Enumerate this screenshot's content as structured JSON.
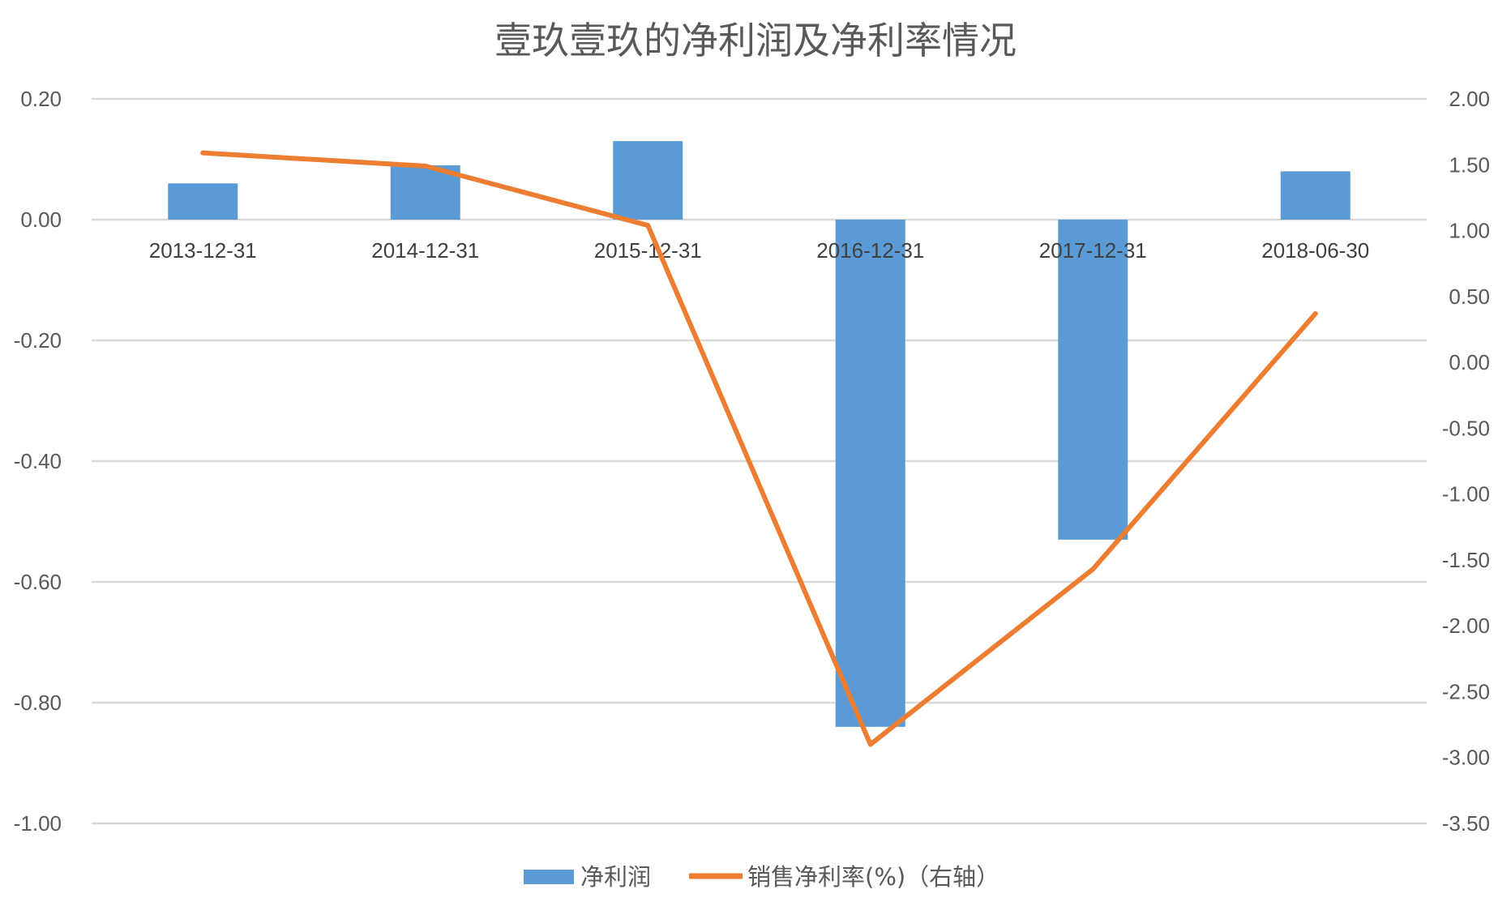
{
  "chart_data": {
    "type": "bar",
    "title": "壹玖壹玖的净利润及净利率情况",
    "categories": [
      "2013-12-31",
      "2014-12-31",
      "2015-12-31",
      "2016-12-31",
      "2017-12-31",
      "2018-06-30"
    ],
    "series": [
      {
        "name": "净利润",
        "type": "bar",
        "axis": "left",
        "values": [
          0.06,
          0.09,
          0.13,
          -0.84,
          -0.53,
          0.08
        ]
      },
      {
        "name": "销售净利率(%)（右轴）",
        "type": "line",
        "axis": "right",
        "values": [
          1.59,
          1.49,
          1.04,
          -2.9,
          -1.57,
          0.37
        ]
      }
    ],
    "left_axis": {
      "ylim": [
        -1.0,
        0.2
      ],
      "ticks": [
        "0.20",
        "0.00",
        "-0.20",
        "-0.40",
        "-0.60",
        "-0.80",
        "-1.00"
      ]
    },
    "right_axis": {
      "ylim": [
        -3.5,
        2.0
      ],
      "ticks": [
        "2.00",
        "1.50",
        "1.00",
        "0.50",
        "0.00",
        "-0.50",
        "-1.00",
        "-1.50",
        "-2.00",
        "-2.50",
        "-3.00",
        "-3.50"
      ]
    },
    "grid": true,
    "legend_position": "bottom",
    "colors": {
      "bar": "#5b9bd5",
      "line": "#ed7d31",
      "grid": "#d9d9d9",
      "text": "#595959"
    }
  }
}
